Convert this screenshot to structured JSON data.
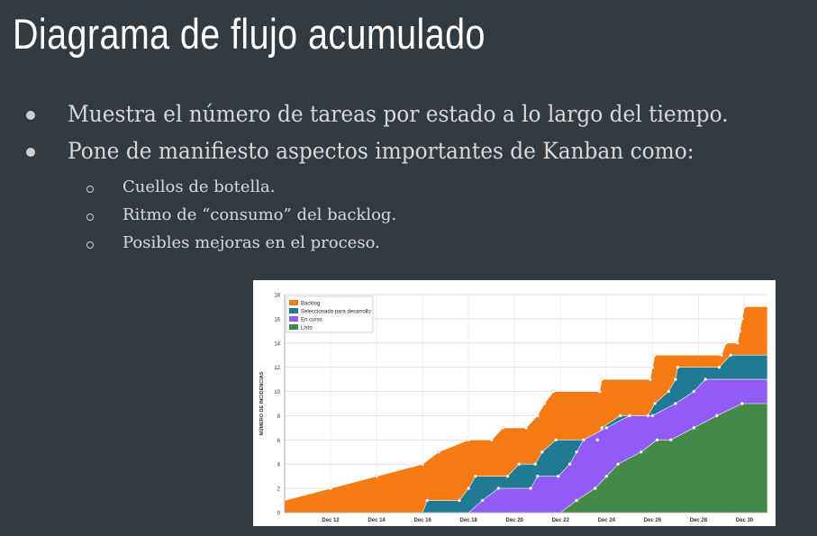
{
  "slide": {
    "title": "Diagrama de flujo acumulado",
    "bullets": [
      "Muestra el número de tareas por estado a lo largo del tiempo.",
      "Pone de manifiesto aspectos importantes de Kanban como:"
    ],
    "sub_bullets": [
      "Cuellos de botella.",
      "Ritmo de “consumo” del backlog.",
      "Posibles mejoras en el proceso."
    ]
  },
  "chart_data": {
    "type": "area",
    "stacked": true,
    "ylabel": "NÚMERO DE INCIDENCIAS",
    "xlabel": "",
    "ylim": [
      0,
      18
    ],
    "xlim": [
      10,
      31
    ],
    "yticks": [
      0,
      2,
      4,
      6,
      8,
      10,
      12,
      14,
      16,
      18
    ],
    "xticks": [
      {
        "x": 12,
        "label": "Dec 12"
      },
      {
        "x": 14,
        "label": "Dec 14"
      },
      {
        "x": 16,
        "label": "Dec 16"
      },
      {
        "x": 18,
        "label": "Dec 18"
      },
      {
        "x": 20,
        "label": "Dec 20"
      },
      {
        "x": 22,
        "label": "Dec 22"
      },
      {
        "x": 24,
        "label": "Dec 24"
      },
      {
        "x": 26,
        "label": "Dec 26"
      },
      {
        "x": 28,
        "label": "Dec 28"
      },
      {
        "x": 30,
        "label": "Dec 30"
      }
    ],
    "grid": true,
    "legend_position": "top-left",
    "series": [
      {
        "name": "Backlog",
        "color": "#f77b15"
      },
      {
        "name": "Seleccionado para desarrollo",
        "color": "#217a93"
      },
      {
        "name": "En curso",
        "color": "#915cf6"
      },
      {
        "name": "Listo",
        "color": "#468a4a"
      }
    ],
    "total": [
      [
        10,
        1
      ],
      [
        12,
        2
      ],
      [
        14,
        3
      ],
      [
        16,
        4
      ],
      [
        16.7,
        5
      ],
      [
        18,
        6
      ],
      [
        19,
        6
      ],
      [
        19.5,
        7
      ],
      [
        20.5,
        7
      ],
      [
        21,
        8
      ],
      [
        21.3,
        9
      ],
      [
        21.7,
        10
      ],
      [
        23.7,
        10
      ],
      [
        23.8,
        11
      ],
      [
        25.9,
        11
      ],
      [
        26,
        12
      ],
      [
        26.1,
        13
      ],
      [
        29,
        13
      ],
      [
        29.2,
        14
      ],
      [
        29.7,
        14
      ],
      [
        29.8,
        15
      ],
      [
        29.9,
        16
      ],
      [
        30,
        17
      ],
      [
        31,
        17
      ]
    ],
    "boundary_sel": [
      [
        10,
        0
      ],
      [
        16,
        0
      ],
      [
        16.2,
        1
      ],
      [
        17.6,
        1
      ],
      [
        18,
        2
      ],
      [
        18.3,
        3
      ],
      [
        19.7,
        3
      ],
      [
        20.2,
        4
      ],
      [
        20.9,
        4
      ],
      [
        21.2,
        5
      ],
      [
        21.8,
        6
      ],
      [
        23.6,
        6
      ],
      [
        23.8,
        7
      ],
      [
        24.6,
        8
      ],
      [
        25.8,
        8
      ],
      [
        26.1,
        9
      ],
      [
        26.7,
        10
      ],
      [
        27,
        11
      ],
      [
        27.1,
        12
      ],
      [
        28.9,
        12
      ],
      [
        29.4,
        13
      ],
      [
        31,
        13
      ]
    ],
    "boundary_curso": [
      [
        10,
        0
      ],
      [
        18,
        0
      ],
      [
        18.6,
        1
      ],
      [
        19.3,
        2
      ],
      [
        20.7,
        2
      ],
      [
        21,
        3
      ],
      [
        21.9,
        3
      ],
      [
        22.4,
        4
      ],
      [
        22.7,
        5
      ],
      [
        23,
        6
      ],
      [
        24,
        7
      ],
      [
        25,
        8
      ],
      [
        26,
        8
      ],
      [
        27,
        9
      ],
      [
        27.8,
        10
      ],
      [
        28.3,
        11
      ],
      [
        31,
        11
      ]
    ],
    "boundary_listo": [
      [
        10,
        0
      ],
      [
        22,
        0
      ],
      [
        22.7,
        1
      ],
      [
        23.5,
        2
      ],
      [
        24,
        3
      ],
      [
        24.5,
        4
      ],
      [
        25.5,
        5
      ],
      [
        26.2,
        6
      ],
      [
        26.8,
        6
      ],
      [
        27.8,
        7
      ],
      [
        28.8,
        8
      ],
      [
        29.9,
        9
      ],
      [
        31,
        9
      ]
    ]
  }
}
